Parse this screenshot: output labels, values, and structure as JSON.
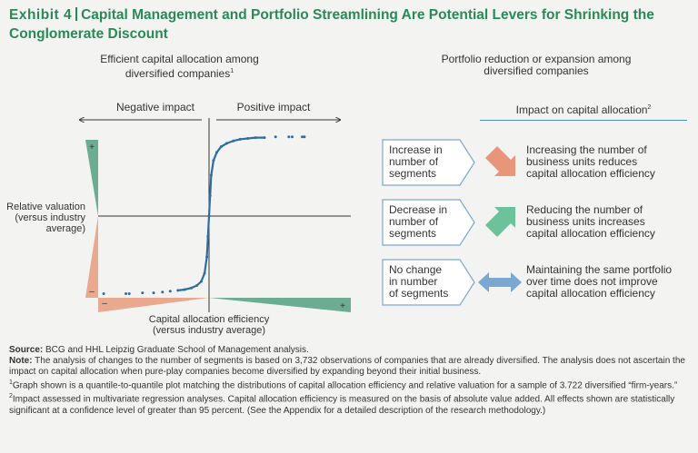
{
  "header": {
    "exhibit": "Exhibit 4",
    "title": "Capital Management and Portfolio Streamlining Are Potential Levers for Shrinking the Conglomerate Discount"
  },
  "left_panel": {
    "heading_line1": "Efficient capital allocation among",
    "heading_line2": "diversified companies",
    "heading_sup": "1",
    "negative_label": "Negative impact",
    "positive_label": "Positive impact",
    "y_label_line1": "Relative valuation",
    "y_label_line2": "(versus industry",
    "y_label_line3": "average)",
    "x_label_line1": "Capital allocation efficiency",
    "x_label_line2": "(versus industry average)",
    "y_plus": "+",
    "y_minus": "–",
    "x_minus": "–",
    "x_plus": "+"
  },
  "chart_data": {
    "type": "scatter",
    "title": "Efficient capital allocation among diversified companies",
    "xlabel": "Capital allocation efficiency (versus industry average)",
    "ylabel": "Relative valuation (versus industry average)",
    "xlim": [
      -1,
      1
    ],
    "ylim": [
      -1,
      1
    ],
    "x_ticks": [
      "–",
      "+"
    ],
    "y_ticks": [
      "–",
      "+"
    ],
    "annotations": [
      "Negative impact",
      "Positive impact"
    ],
    "series": [
      {
        "name": "Quantile-to-quantile plot",
        "x": [
          -0.95,
          -0.75,
          -0.72,
          -0.6,
          -0.5,
          -0.42,
          -0.35,
          -0.28,
          -0.22,
          -0.16,
          -0.11,
          -0.07,
          -0.04,
          -0.02,
          -0.01,
          0.0,
          0.01,
          0.02,
          0.04,
          0.07,
          0.11,
          0.16,
          0.22,
          0.28,
          0.35,
          0.42,
          0.5,
          0.6,
          0.72,
          0.75,
          0.84,
          0.86
        ],
        "y": [
          -0.95,
          -0.95,
          -0.95,
          -0.94,
          -0.94,
          -0.93,
          -0.92,
          -0.91,
          -0.9,
          -0.88,
          -0.85,
          -0.8,
          -0.7,
          -0.5,
          -0.25,
          0.0,
          0.25,
          0.5,
          0.68,
          0.78,
          0.85,
          0.89,
          0.92,
          0.94,
          0.95,
          0.96,
          0.96,
          0.97,
          0.97,
          0.97,
          0.97,
          0.97
        ]
      }
    ]
  },
  "right_panel": {
    "heading_line1": "Portfolio reduction or expansion among",
    "heading_line2": "diversified companies",
    "impact_header": "Impact on capital allocation",
    "impact_sup": "2",
    "rows": [
      {
        "box_line1": "Increase in",
        "box_line2": "number of",
        "box_line3": "segments",
        "arrow": "arrow-down-right-icon",
        "arrow_color": "#e8957a",
        "desc_line1": "Increasing the number of",
        "desc_line2": "business units reduces",
        "desc_line3": "capital allocation efficiency"
      },
      {
        "box_line1": "Decrease in",
        "box_line2": "number of",
        "box_line3": "segments",
        "arrow": "arrow-up-right-icon",
        "arrow_color": "#6cc29a",
        "desc_line1": "Reducing the number of",
        "desc_line2": "business units increases",
        "desc_line3": "capital allocation efficiency"
      },
      {
        "box_line1": "No change",
        "box_line2": "in number",
        "box_line3": "of segments",
        "arrow": "arrow-left-right-icon",
        "arrow_color": "#7ba7d3",
        "desc_line1": "Maintaining the same portfolio",
        "desc_line2": "over time does not improve",
        "desc_line3": "capital allocation efficiency"
      }
    ]
  },
  "notes": {
    "source_label": "Source:",
    "source_text": " BCG and HHL Leipzig Graduate School of Management analysis.",
    "note_label": "Note:",
    "note_text": " The analysis of changes to the number of segments is based on 3,732 observations of companies that are already diversified. The analysis does not ascertain the impact on capital allocation when pure-play companies become diversified by expanding beyond their initial business.",
    "fn1_sup": "1",
    "fn1_text": "Graph shown is a quantile-to-quantile plot matching the distributions of capital allocation efficiency and relative valuation for a sample of 3.722 diversified “firm-years.”",
    "fn2_sup": "2",
    "fn2_text": "Impact assessed in multivariate regression analyses. Capital allocation efficiency is measured on the basis of absolute value added. All effects shown are statistically significant at a confidence level of greater than 95 percent. (See the Appendix for a detailed description of the research methodology.)"
  },
  "colors": {
    "brand_green": "#2a8a57",
    "wedge_green": "#6cac92",
    "wedge_salmon": "#e8a98f",
    "curve_blue": "#2e6da4",
    "box_border": "#7ba7d3"
  }
}
